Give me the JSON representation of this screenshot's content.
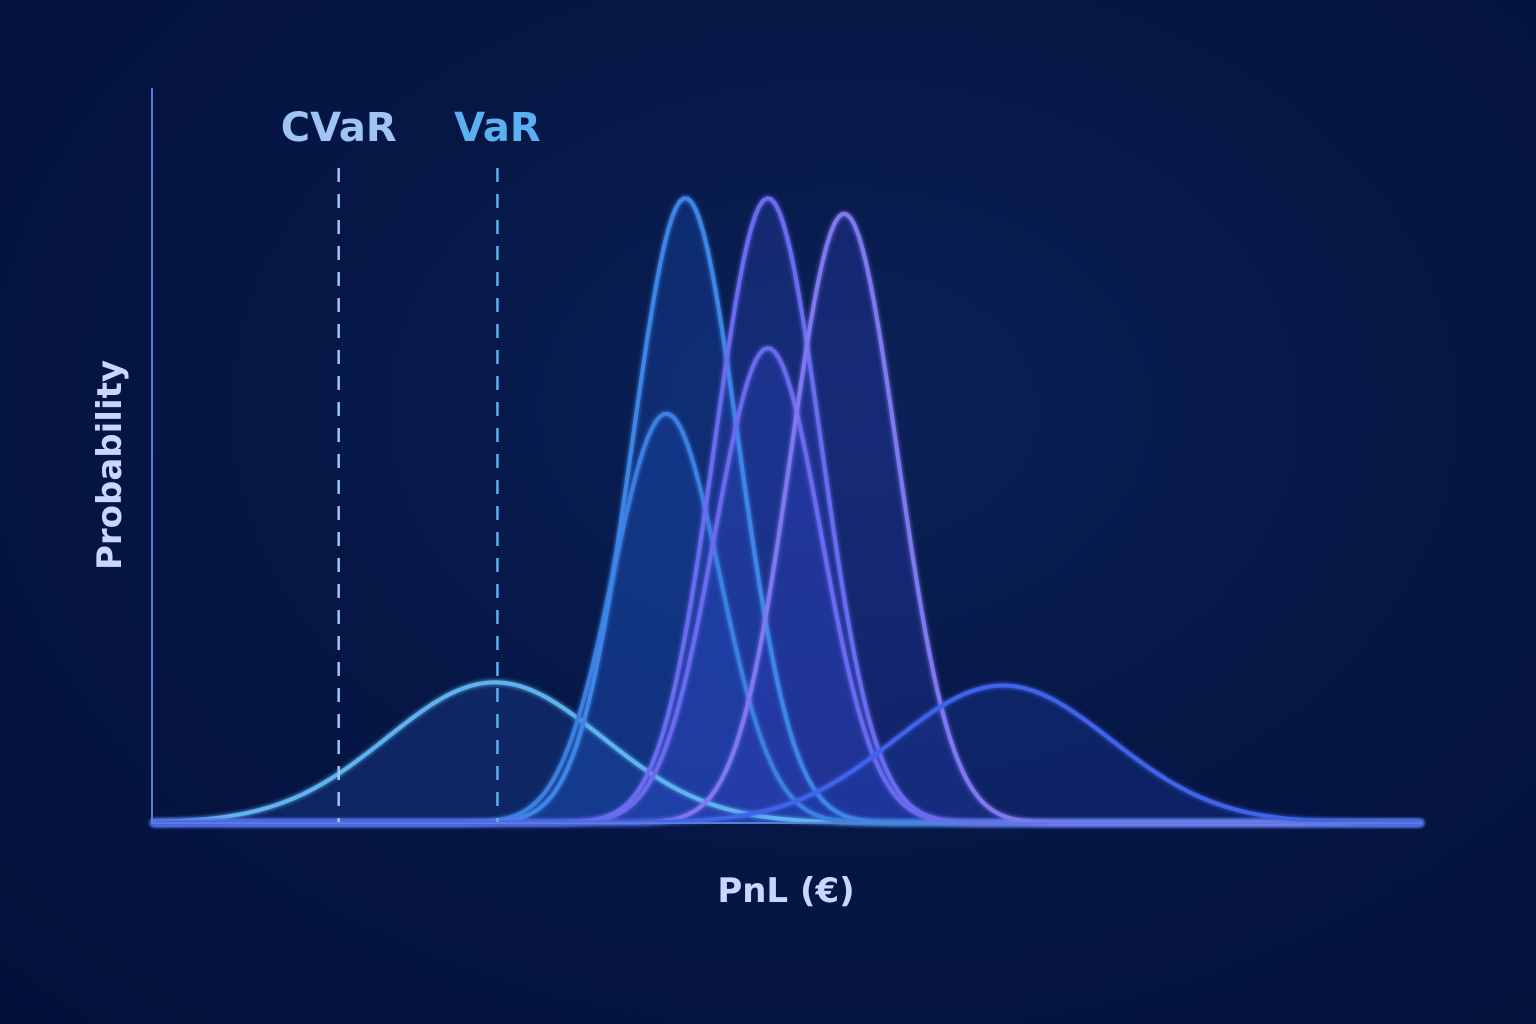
{
  "chart_data": {
    "type": "area",
    "xlabel": "PnL (€)",
    "ylabel": "Probability",
    "xlim": [
      0,
      100
    ],
    "ylim": [
      0,
      100
    ],
    "grid": false,
    "legend": "none",
    "series": [
      {
        "mean": 27,
        "sd": 8.5,
        "peak": 22.5,
        "color": "#5fb4ef",
        "fill": "#1e4aa8"
      },
      {
        "mean": 40.5,
        "sd": 4.2,
        "peak": 65.5,
        "color": "#3a7fe0",
        "fill": "#1a47a8"
      },
      {
        "mean": 42,
        "sd": 4.2,
        "peak": 100,
        "color": "#3d86e8",
        "fill": "#1d4fb8"
      },
      {
        "mean": 48.5,
        "sd": 4.2,
        "peak": 76,
        "color": "#6a6af0",
        "fill": "#2a48c0"
      },
      {
        "mean": 48.5,
        "sd": 4.2,
        "peak": 100,
        "color": "#6a6cf0",
        "fill": "#2c44bc"
      },
      {
        "mean": 54.5,
        "sd": 4.2,
        "peak": 97.5,
        "color": "#8078f0",
        "fill": "#2e3fb6"
      },
      {
        "mean": 67,
        "sd": 8.5,
        "peak": 22,
        "color": "#3f63ea",
        "fill": "#1b3fa8"
      }
    ],
    "markers": [
      {
        "label": "CVaR",
        "x": 14.7,
        "color": "#9fc4f5"
      },
      {
        "label": "VaR",
        "x": 27.2,
        "color": "#5ab0f0"
      }
    ],
    "axis_color": "#5a7ed8"
  }
}
